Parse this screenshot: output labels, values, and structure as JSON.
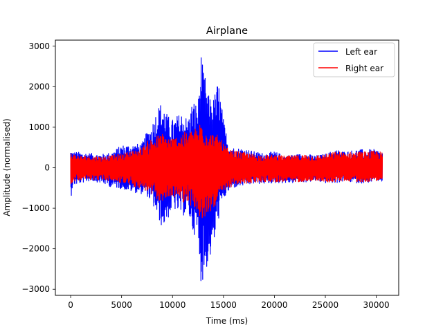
{
  "chart_data": {
    "type": "line",
    "title": "Airplane",
    "xlabel": "Time (ms)",
    "ylabel": "Amplitude (normalised)",
    "xlim": [
      -1500,
      32200
    ],
    "ylim": [
      -3150,
      3150
    ],
    "xticks": [
      0,
      5000,
      10000,
      15000,
      20000,
      25000,
      30000
    ],
    "yticks": [
      -3000,
      -2000,
      -1000,
      0,
      1000,
      2000,
      3000
    ],
    "grid": false,
    "legend_position": "upper right",
    "series": [
      {
        "name": "Left ear",
        "color": "#0000ff",
        "envelope": {
          "x": [
            0,
            200,
            1000,
            2000,
            3000,
            4000,
            5000,
            6000,
            7000,
            7500,
            8000,
            8500,
            9000,
            9500,
            10000,
            10500,
            11000,
            11500,
            12000,
            12500,
            12800,
            13000,
            13200,
            13500,
            14000,
            14500,
            15000,
            15500,
            16000,
            17000,
            18000,
            19000,
            20000,
            21000,
            22000,
            23000,
            24000,
            25000,
            26000,
            27000,
            28000,
            29000,
            30000,
            30600
          ],
          "upper": [
            450,
            400,
            380,
            360,
            330,
            380,
            560,
            580,
            600,
            900,
            1100,
            1500,
            1650,
            1300,
            1200,
            1300,
            1400,
            1200,
            1700,
            1550,
            2900,
            2400,
            2250,
            1800,
            1700,
            2200,
            1200,
            600,
            500,
            480,
            400,
            360,
            400,
            300,
            330,
            350,
            300,
            340,
            450,
            400,
            450,
            450,
            450,
            400
          ],
          "lower": [
            -800,
            -450,
            -380,
            -320,
            -380,
            -480,
            -520,
            -600,
            -650,
            -700,
            -900,
            -1200,
            -1500,
            -1300,
            -1000,
            -1100,
            -1200,
            -1100,
            -1600,
            -1800,
            -2850,
            -2800,
            -2600,
            -2400,
            -2000,
            -1300,
            -800,
            -600,
            -500,
            -450,
            -400,
            -400,
            -380,
            -380,
            -380,
            -360,
            -330,
            -380,
            -380,
            -330,
            -380,
            -380,
            -330,
            -350
          ]
        }
      },
      {
        "name": "Right ear",
        "color": "#ff0000",
        "envelope": {
          "x": [
            0,
            200,
            1000,
            2000,
            3000,
            4000,
            5000,
            6000,
            7000,
            7500,
            8000,
            8500,
            9000,
            9500,
            10000,
            10500,
            11000,
            11500,
            12000,
            12500,
            12800,
            13000,
            13200,
            13500,
            14000,
            14500,
            15000,
            15500,
            16000,
            17000,
            18000,
            19000,
            20000,
            21000,
            22000,
            23000,
            24000,
            25000,
            26000,
            27000,
            28000,
            29000,
            30000,
            30600
          ],
          "upper": [
            400,
            350,
            300,
            300,
            280,
            300,
            350,
            420,
            500,
            650,
            750,
            800,
            850,
            780,
            750,
            800,
            900,
            850,
            1000,
            950,
            1250,
            1100,
            1050,
            900,
            850,
            800,
            600,
            450,
            420,
            380,
            330,
            300,
            330,
            290,
            300,
            330,
            300,
            330,
            400,
            380,
            400,
            400,
            420,
            380
          ],
          "lower": [
            -450,
            -350,
            -300,
            -300,
            -300,
            -330,
            -380,
            -450,
            -520,
            -600,
            -700,
            -800,
            -850,
            -780,
            -700,
            -760,
            -850,
            -850,
            -1000,
            -1100,
            -1500,
            -1350,
            -1250,
            -1150,
            -1000,
            -850,
            -650,
            -500,
            -450,
            -400,
            -380,
            -350,
            -350,
            -350,
            -360,
            -330,
            -320,
            -360,
            -350,
            -320,
            -350,
            -350,
            -320,
            -330
          ]
        }
      }
    ]
  }
}
